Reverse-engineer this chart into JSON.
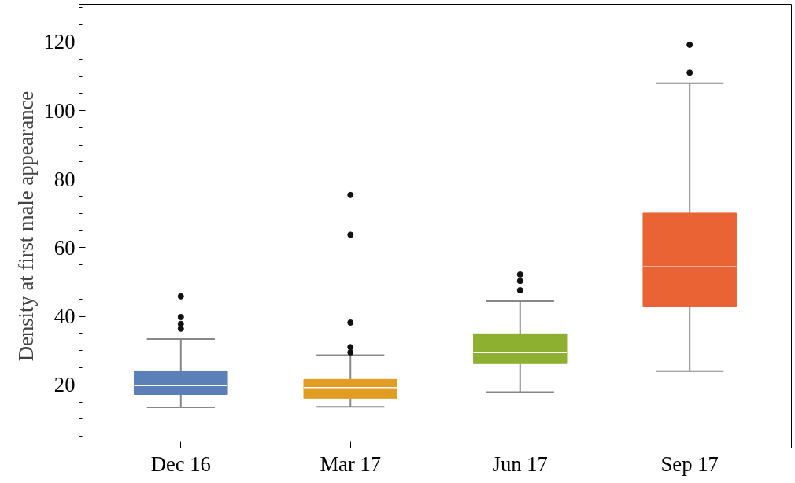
{
  "chart_data": {
    "type": "box",
    "ylabel": "Density at first male appearance",
    "categories": [
      "Dec 16",
      "Mar 17",
      "Jun 17",
      "Sep 17"
    ],
    "colors": [
      "#5b80b8",
      "#e19c24",
      "#8eb031",
      "#ea6335"
    ],
    "boxes": [
      {
        "low": 13.4,
        "q1": 17.2,
        "median": 19.8,
        "q3": 24.1,
        "high": 33.4,
        "outliers": [
          45.8,
          39.8,
          37.8,
          36.4
        ]
      },
      {
        "low": 13.6,
        "q1": 16.1,
        "median": 19.2,
        "q3": 21.6,
        "high": 28.7,
        "outliers": [
          75.4,
          63.8,
          38.2,
          31.0,
          29.5
        ]
      },
      {
        "low": 17.9,
        "q1": 26.2,
        "median": 29.4,
        "q3": 34.9,
        "high": 44.4,
        "outliers": [
          52.2,
          50.3,
          47.6
        ]
      },
      {
        "low": 24.0,
        "q1": 42.9,
        "median": 54.4,
        "q3": 70.1,
        "high": 108.0,
        "outliers": [
          119.2,
          111.1
        ]
      }
    ],
    "ylim": [
      1.6,
      131
    ],
    "yticks": [
      20,
      40,
      60,
      80,
      100,
      120
    ],
    "grid": false
  }
}
